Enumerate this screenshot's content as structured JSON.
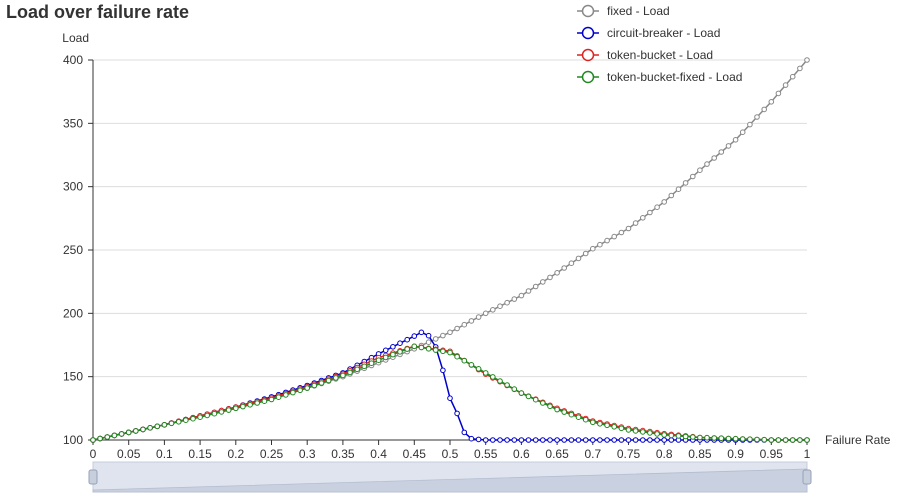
{
  "chart_data": {
    "type": "line",
    "title": "Load over failure rate",
    "xlabel": "Failure Rate",
    "ylabel": "Load",
    "xlim": [
      0,
      1
    ],
    "ylim": [
      100,
      400
    ],
    "x_ticks": [
      "0",
      "0.05",
      "0.1",
      "0.15",
      "0.2",
      "0.25",
      "0.3",
      "0.35",
      "0.4",
      "0.45",
      "0.5",
      "0.55",
      "0.6",
      "0.65",
      "0.7",
      "0.75",
      "0.8",
      "0.85",
      "0.9",
      "0.95",
      "1"
    ],
    "y_ticks": [
      "100",
      "150",
      "200",
      "250",
      "300",
      "350",
      "400"
    ],
    "grid": "horizontal",
    "legend_position": "top-right",
    "series": [
      {
        "name": "fixed - Load",
        "color": "#888888",
        "x": [
          0,
          0.05,
          0.1,
          0.15,
          0.2,
          0.25,
          0.3,
          0.35,
          0.4,
          0.45,
          0.5,
          0.55,
          0.6,
          0.65,
          0.7,
          0.75,
          0.8,
          0.85,
          0.9,
          0.95,
          1
        ],
        "y": [
          100,
          106,
          112,
          119,
          125,
          133,
          141,
          150,
          161,
          172,
          185,
          200,
          214,
          232,
          251,
          267,
          288,
          313,
          337,
          367,
          400
        ]
      },
      {
        "name": "circuit-breaker - Load",
        "color": "#0000cc",
        "x": [
          0,
          0.05,
          0.1,
          0.15,
          0.2,
          0.25,
          0.3,
          0.35,
          0.4,
          0.45,
          0.46,
          0.475,
          0.485,
          0.5,
          0.51,
          0.52,
          0.53,
          0.55,
          0.6,
          0.65,
          0.7,
          0.75,
          0.8,
          0.85,
          0.9,
          0.95,
          1
        ],
        "y": [
          100,
          106,
          112,
          119,
          126,
          134,
          143,
          153,
          168,
          182,
          185,
          181,
          166,
          133,
          121,
          106,
          101,
          100,
          100,
          100,
          100,
          100,
          100,
          100,
          100,
          100,
          100
        ]
      },
      {
        "name": "token-bucket - Load",
        "color": "#dd2222",
        "x": [
          0,
          0.05,
          0.1,
          0.15,
          0.2,
          0.25,
          0.3,
          0.35,
          0.4,
          0.45,
          0.5,
          0.55,
          0.6,
          0.65,
          0.7,
          0.75,
          0.8,
          0.85,
          0.9,
          0.95,
          1
        ],
        "y": [
          100,
          106,
          112,
          119,
          126,
          133,
          142,
          152,
          165,
          174,
          170,
          152,
          137,
          125,
          115,
          109,
          105,
          102,
          101,
          100,
          100
        ]
      },
      {
        "name": "token-bucket-fixed - Load",
        "color": "#228822",
        "x": [
          0,
          0.05,
          0.1,
          0.15,
          0.2,
          0.25,
          0.3,
          0.35,
          0.4,
          0.45,
          0.5,
          0.55,
          0.6,
          0.65,
          0.7,
          0.75,
          0.8,
          0.85,
          0.9,
          0.95,
          1
        ],
        "y": [
          100,
          106,
          112,
          118,
          125,
          132,
          141,
          151,
          163,
          174,
          169,
          153,
          137,
          124,
          114,
          108,
          104,
          102,
          101,
          100,
          100
        ]
      }
    ]
  },
  "zoom": {
    "start": 0,
    "end": 1
  }
}
